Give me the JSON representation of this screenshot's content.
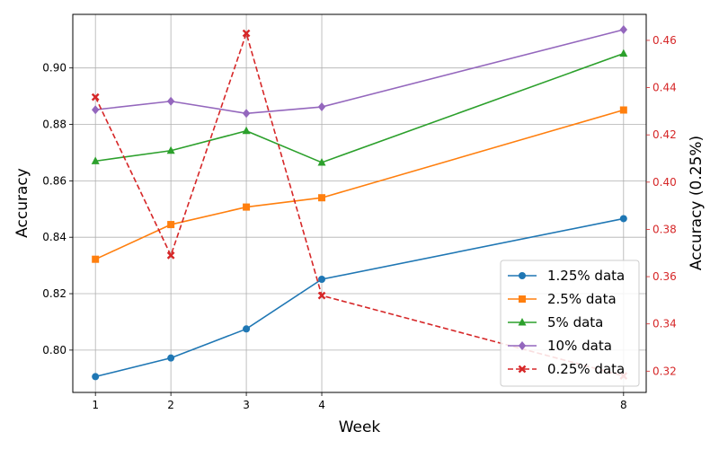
{
  "chart_data": {
    "type": "line",
    "x": [
      1,
      2,
      3,
      4,
      8
    ],
    "xticks": [
      1,
      2,
      3,
      4,
      8
    ],
    "xlabel": "Week",
    "ylabel": "Accuracy",
    "ylabel_right": "Accuracy (0.25%)",
    "ylim": [
      0.785,
      0.919
    ],
    "ylim_right": [
      0.311,
      0.471
    ],
    "yticks": [
      0.8,
      0.82,
      0.84,
      0.86,
      0.88,
      0.9
    ],
    "yticks_right": [
      0.32,
      0.34,
      0.36,
      0.38,
      0.4,
      0.42,
      0.44,
      0.46
    ],
    "grid": true,
    "legend_position": "bottom-right",
    "right_axis_color": "#d62728",
    "series": [
      {
        "name": "1.25% data",
        "values": [
          0.7906,
          0.7972,
          0.8075,
          0.8251,
          0.8466
        ],
        "color": "#1f77b4",
        "marker": "circle",
        "dash": "solid",
        "axis": "left"
      },
      {
        "name": "2.5% data",
        "values": [
          0.8322,
          0.8445,
          0.8507,
          0.854,
          0.8851
        ],
        "color": "#ff7f0e",
        "marker": "square",
        "dash": "solid",
        "axis": "left"
      },
      {
        "name": "5% data",
        "values": [
          0.867,
          0.8707,
          0.8777,
          0.8665,
          0.9051
        ],
        "color": "#2ca02c",
        "marker": "triangle",
        "dash": "solid",
        "axis": "left"
      },
      {
        "name": "10% data",
        "values": [
          0.8852,
          0.8882,
          0.8839,
          0.8862,
          0.9136
        ],
        "color": "#9467bd",
        "marker": "diamond",
        "dash": "solid",
        "axis": "left"
      },
      {
        "name": "0.25% data",
        "values": [
          0.436,
          0.369,
          0.463,
          0.352,
          0.318
        ],
        "color": "#d62728",
        "marker": "x",
        "dash": "dashed",
        "axis": "right"
      }
    ]
  }
}
